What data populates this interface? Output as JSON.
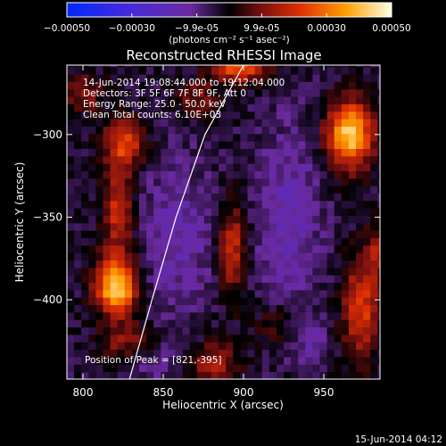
{
  "chart_data": {
    "type": "heatmap",
    "title": "Reconstructed RHESSI Image",
    "xlabel": "Heliocentric X (arcsec)",
    "ylabel": "Heliocentric Y (arcsec)",
    "xlim": [
      790,
      985
    ],
    "ylim": [
      -448,
      -258
    ],
    "x_ticks": [
      800,
      850,
      900,
      950
    ],
    "y_ticks": [
      -300,
      -350,
      -400
    ],
    "colorbar": {
      "ticks": [
        "-0.00050",
        "-0.00030",
        "-9.9e-05",
        "9.9e-05",
        "0.00030",
        "0.00050"
      ],
      "unit": "(photons cm⁻² s⁻¹ asec⁻²)",
      "range": [
        -0.0005,
        0.0005
      ]
    },
    "annotations": [
      "14-Jun-2014 19:08:44.000 to 19:12:04.000",
      "Detectors: 3F 5F 6F 7F 8F 9F, Att 0",
      "Energy Range: 25.0 - 50.0 keV",
      "Clean    Total counts: 6.10E+03"
    ],
    "peak_label": "Position of Peak = [821,-395]",
    "peak": [
      821,
      -395
    ],
    "limb_points": [
      [
        829,
        -448
      ],
      [
        843,
        -400
      ],
      [
        858,
        -350
      ],
      [
        876,
        -300
      ],
      [
        900,
        -258
      ]
    ],
    "sources": [
      {
        "x": 821,
        "y": -392,
        "sx": 9,
        "sy": 12,
        "v": 0.00048
      },
      {
        "x": 822,
        "y": -345,
        "sx": 7,
        "sy": 20,
        "v": 0.00024
      },
      {
        "x": 826,
        "y": -305,
        "sx": 9,
        "sy": 10,
        "v": 0.00026
      },
      {
        "x": 800,
        "y": -275,
        "sx": 9,
        "sy": 8,
        "v": 0.00016
      },
      {
        "x": 826,
        "y": -425,
        "sx": 12,
        "sy": 8,
        "v": 0.00014
      },
      {
        "x": 966,
        "y": -300,
        "sx": 10,
        "sy": 14,
        "v": 0.00047
      },
      {
        "x": 973,
        "y": -405,
        "sx": 8,
        "sy": 22,
        "v": 0.00026
      },
      {
        "x": 983,
        "y": -370,
        "sx": 5,
        "sy": 12,
        "v": 0.00016
      },
      {
        "x": 898,
        "y": -258,
        "sx": 12,
        "sy": 7,
        "v": 0.00033
      },
      {
        "x": 893,
        "y": -370,
        "sx": 6,
        "sy": 20,
        "v": 0.00023
      },
      {
        "x": 871,
        "y": -278,
        "sx": 10,
        "sy": 8,
        "v": 0.00014
      },
      {
        "x": 882,
        "y": -438,
        "sx": 11,
        "sy": 9,
        "v": 0.00019
      },
      {
        "x": 920,
        "y": -415,
        "sx": 10,
        "sy": 9,
        "v": 0.00011
      },
      {
        "x": 858,
        "y": -362,
        "sx": 16,
        "sy": 35,
        "v": -0.00011
      },
      {
        "x": 928,
        "y": -352,
        "sx": 14,
        "sy": 42,
        "v": -0.00012
      },
      {
        "x": 942,
        "y": -425,
        "sx": 9,
        "sy": 8,
        "v": -9e-05
      },
      {
        "x": 845,
        "y": -440,
        "sx": 9,
        "sy": 7,
        "v": -8e-05
      }
    ]
  },
  "footer": {
    "timestamp": "15-Jun-2014 04:12"
  }
}
